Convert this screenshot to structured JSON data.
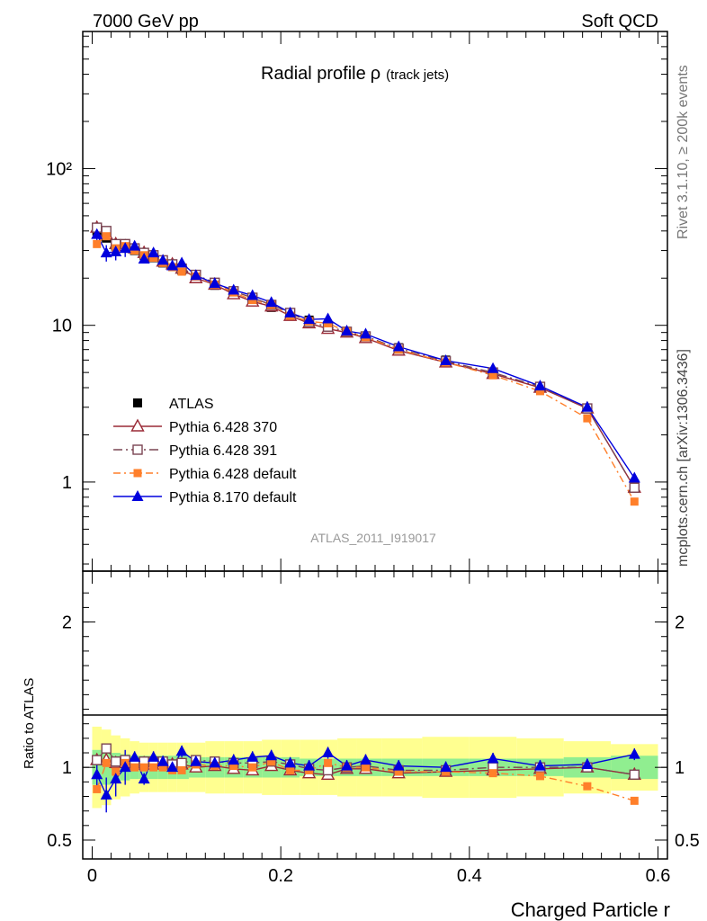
{
  "header": {
    "left": "7000 GeV pp",
    "right": "Soft QCD"
  },
  "side_labels": {
    "top": "Rivet 3.1.10, ≥ 200k events",
    "bottom": "mcplots.cern.ch [arXiv:1306.3436]"
  },
  "watermark": "ATLAS_2011_I919017",
  "colors": {
    "atlas": "#000000",
    "py370": "#9a2a36",
    "py391": "#7a4552",
    "pydef": "#ff7f2a",
    "py8": "#0000dd",
    "band_outer": "#ffff90",
    "band_inner": "#90ee90"
  },
  "chart_data": [
    {
      "type": "line",
      "title": "Radial profile",
      "title_symbol": "ρ",
      "title_suffix": "(track jets)",
      "yscale": "log",
      "xlim": [
        -0.01,
        0.61
      ],
      "ylim": [
        0.27,
        750
      ],
      "ytick_labels": [
        "10²",
        "10",
        "1"
      ],
      "x": [
        0.005,
        0.015,
        0.025,
        0.035,
        0.045,
        0.055,
        0.065,
        0.075,
        0.085,
        0.095,
        0.11,
        0.13,
        0.15,
        0.17,
        0.19,
        0.21,
        0.23,
        0.25,
        0.27,
        0.29,
        0.325,
        0.375,
        0.425,
        0.475,
        0.525,
        0.575
      ],
      "series": [
        {
          "key": "atlas",
          "name": "ATLAS",
          "style": "points",
          "values": [
            40,
            36,
            32,
            31,
            30,
            28,
            27,
            25,
            24,
            22.5,
            20,
            18,
            16,
            14.5,
            13,
            11.7,
            10.8,
            10,
            9.1,
            8.4,
            7.2,
            6.0,
            5.0,
            4.05,
            2.95,
            0.97
          ]
        },
        {
          "key": "py370",
          "name": "Pythia 6.428 370",
          "style": "open-triangle",
          "values": [
            42,
            38,
            33,
            32,
            31,
            29,
            27.5,
            25.5,
            24.5,
            23,
            20,
            18.2,
            15.8,
            14.2,
            13.2,
            11.5,
            10.3,
            9.5,
            9.0,
            8.3,
            6.9,
            5.8,
            4.9,
            4.0,
            2.95,
            0.92
          ]
        },
        {
          "key": "py391",
          "name": "Pythia 6.428 391",
          "style": "open-square",
          "values": [
            42,
            40,
            33,
            33,
            31,
            29,
            28,
            26,
            24.5,
            23,
            21,
            18.7,
            16.5,
            15,
            13.5,
            12,
            10.5,
            9.8,
            9.1,
            8.5,
            7.1,
            5.9,
            5.0,
            4.05,
            2.95,
            0.92
          ]
        },
        {
          "key": "pydef",
          "name": "Pythia 6.428 default",
          "style": "filled-square-dashdot",
          "values": [
            33,
            37,
            31,
            32,
            30,
            28,
            27,
            25,
            23.5,
            22,
            20.5,
            18.2,
            16.2,
            14.5,
            13.5,
            11.5,
            10.6,
            10.3,
            9.1,
            8.4,
            7.0,
            5.8,
            4.8,
            3.8,
            2.55,
            0.75
          ]
        },
        {
          "key": "py8",
          "name": "Pythia 8.170 default",
          "style": "filled-triangle",
          "values": [
            38,
            29,
            29.5,
            31,
            32,
            26.5,
            29,
            26,
            24,
            25,
            20.8,
            18.5,
            16.8,
            15.5,
            14,
            12,
            10.9,
            11,
            9.2,
            8.8,
            7.3,
            5.95,
            5.3,
            4.1,
            3.0,
            1.06
          ]
        }
      ],
      "atlas_errors": [
        0.1,
        0.06,
        0.05,
        0.04,
        0.04,
        0.04,
        0.04,
        0.04,
        0.04,
        0.04,
        0.04,
        0.03,
        0.03,
        0.03,
        0.03,
        0.03,
        0.03,
        0.03,
        0.03,
        0.03,
        0.03,
        0.03,
        0.03,
        0.03,
        0.03,
        0.03
      ],
      "legend": "left-lower"
    },
    {
      "type": "line",
      "ylabel": "Ratio to ATLAS",
      "xlabel": "Charged Particle r",
      "xlim": [
        -0.01,
        0.61
      ],
      "ylim": [
        0.37,
        2.35
      ],
      "ytick_labels": [
        "2",
        "1",
        "0.5"
      ],
      "xtick_labels": [
        "0",
        "0.2",
        "0.4",
        "0.6"
      ],
      "x": [
        0.005,
        0.015,
        0.025,
        0.035,
        0.045,
        0.055,
        0.065,
        0.075,
        0.085,
        0.095,
        0.11,
        0.13,
        0.15,
        0.17,
        0.19,
        0.21,
        0.23,
        0.25,
        0.27,
        0.29,
        0.325,
        0.375,
        0.425,
        0.475,
        0.525,
        0.575
      ],
      "band_inner_halfwidth": [
        0.12,
        0.12,
        0.1,
        0.09,
        0.08,
        0.08,
        0.08,
        0.08,
        0.08,
        0.08,
        0.07,
        0.07,
        0.07,
        0.07,
        0.07,
        0.07,
        0.06,
        0.06,
        0.06,
        0.06,
        0.06,
        0.06,
        0.06,
        0.06,
        0.07,
        0.08
      ],
      "band_outer_halfwidth": [
        0.28,
        0.26,
        0.22,
        0.2,
        0.18,
        0.17,
        0.17,
        0.17,
        0.17,
        0.17,
        0.17,
        0.18,
        0.18,
        0.18,
        0.19,
        0.19,
        0.19,
        0.19,
        0.2,
        0.2,
        0.2,
        0.21,
        0.21,
        0.2,
        0.18,
        0.16
      ],
      "series": [
        {
          "key": "py370",
          "values": [
            1.05,
            1.05,
            1.03,
            1.03,
            1.02,
            1.03,
            1.02,
            1.02,
            1.02,
            1.02,
            1.0,
            1.01,
            0.99,
            0.98,
            1.01,
            0.98,
            0.96,
            0.95,
            0.99,
            0.99,
            0.96,
            0.97,
            0.98,
            0.99,
            1.0,
            0.95
          ]
        },
        {
          "key": "py391",
          "values": [
            1.05,
            1.13,
            1.04,
            1.05,
            1.03,
            1.04,
            1.04,
            1.04,
            1.02,
            1.03,
            1.05,
            1.04,
            1.03,
            1.03,
            1.04,
            1.02,
            0.99,
            0.98,
            1.0,
            1.01,
            0.98,
            0.98,
            1.0,
            1.0,
            1.0,
            0.95
          ]
        },
        {
          "key": "pydef",
          "values": [
            0.85,
            1.03,
            0.97,
            1.03,
            1.0,
            1.0,
            1.0,
            1.0,
            0.98,
            0.98,
            1.02,
            1.01,
            1.01,
            1.0,
            1.04,
            0.98,
            0.98,
            1.03,
            1.0,
            1.0,
            0.97,
            0.97,
            0.96,
            0.94,
            0.87,
            0.77
          ]
        },
        {
          "key": "py8",
          "values": [
            0.95,
            0.81,
            0.92,
            1.0,
            1.07,
            0.92,
            1.07,
            1.04,
            1.0,
            1.11,
            1.04,
            1.03,
            1.05,
            1.07,
            1.08,
            1.03,
            1.01,
            1.1,
            1.01,
            1.05,
            1.01,
            1.0,
            1.06,
            1.01,
            1.02,
            1.09
          ]
        }
      ]
    }
  ]
}
